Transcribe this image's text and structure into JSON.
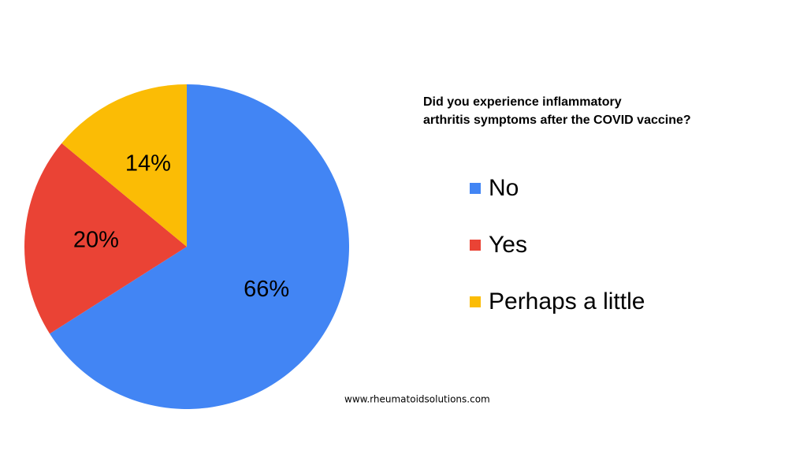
{
  "chart_data": {
    "type": "pie",
    "title": [
      "Did you experience inflammatory",
      "arthritis symptoms after the COVID vaccine?"
    ],
    "categories": [
      "No",
      "Yes",
      "Perhaps a little"
    ],
    "values": [
      66,
      20,
      14
    ],
    "value_labels": [
      "66%",
      "20%",
      "14%"
    ],
    "colors": [
      "#4285f4",
      "#ea4335",
      "#fbbc05"
    ],
    "source": "www.rheumatoidsolutions.com"
  }
}
